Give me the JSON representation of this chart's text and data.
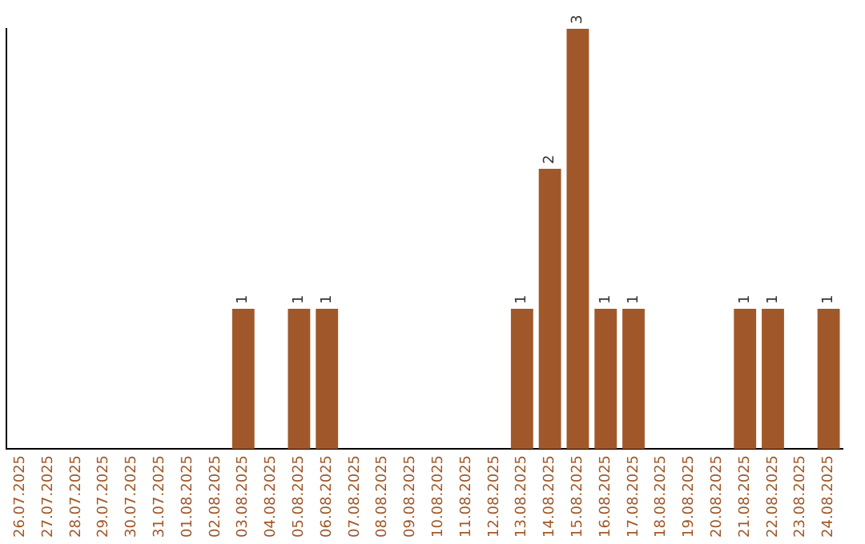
{
  "chart_data": {
    "type": "bar",
    "categories": [
      "26.07.2025",
      "27.07.2025",
      "28.07.2025",
      "29.07.2025",
      "30.07.2025",
      "31.07.2025",
      "01.08.2025",
      "02.08.2025",
      "03.08.2025",
      "04.08.2025",
      "05.08.2025",
      "06.08.2025",
      "07.08.2025",
      "08.08.2025",
      "09.08.2025",
      "10.08.2025",
      "11.08.2025",
      "12.08.2025",
      "13.08.2025",
      "14.08.2025",
      "15.08.2025",
      "16.08.2025",
      "17.08.2025",
      "18.08.2025",
      "19.08.2025",
      "20.08.2025",
      "21.08.2025",
      "22.08.2025",
      "23.08.2025",
      "24.08.2025"
    ],
    "values": [
      0,
      0,
      0,
      0,
      0,
      0,
      0,
      0,
      1,
      0,
      1,
      1,
      0,
      0,
      0,
      0,
      0,
      0,
      1,
      2,
      3,
      1,
      1,
      0,
      0,
      0,
      1,
      1,
      0,
      1
    ],
    "value_labels": [
      null,
      null,
      null,
      null,
      null,
      null,
      null,
      null,
      "1",
      null,
      "1",
      "1",
      null,
      null,
      null,
      null,
      null,
      null,
      "1",
      "2",
      "3",
      "1",
      "1",
      null,
      null,
      null,
      "1",
      "1",
      null,
      "1"
    ],
    "color": "#a0582a",
    "grid": false,
    "legend": false,
    "tick_labels": "x"
  }
}
